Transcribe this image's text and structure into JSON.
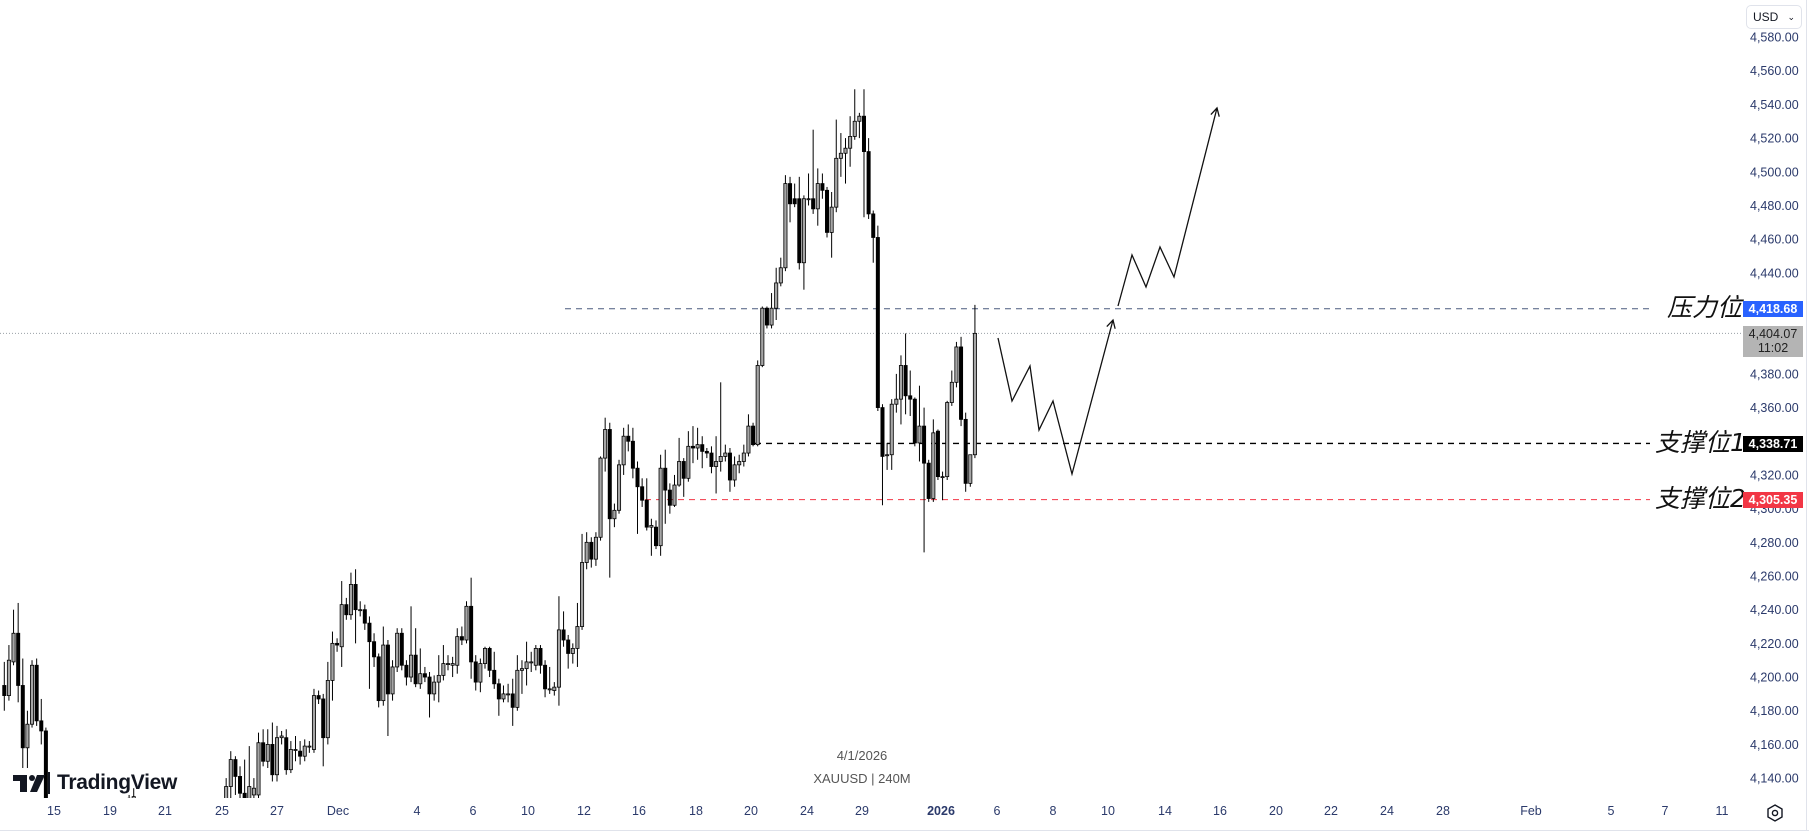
{
  "instrument": {
    "symbol_line": "XAUUSD | 240M",
    "date_line": "4/1/2026"
  },
  "brand": {
    "logo_text": "TradingView"
  },
  "currency_selector": {
    "value": "USD"
  },
  "colors": {
    "bull_body": "#a6a6a6",
    "bear_body": "#000000",
    "outline": "#000000",
    "resistance": "#2962ff",
    "support1": "#000000",
    "support2": "#f23645",
    "current": "#b4b4b4"
  },
  "levels": {
    "resistance": {
      "label": "压力位",
      "value": 4418.68,
      "price_text": "4,418.68"
    },
    "support1": {
      "label": "支撑位1",
      "value": 4338.71,
      "price_text": "4,338.71"
    },
    "support2": {
      "label": "支撑位2",
      "value": 4305.35,
      "price_text": "4,305.35"
    },
    "current": {
      "value": 4404.07,
      "price_text": "4,404.07",
      "countdown": "11:02"
    }
  },
  "chart_data": {
    "type": "candlestick",
    "title": "",
    "ylim": [
      4127,
      4602
    ],
    "grid": false,
    "y_ticks": [
      "4,580.00",
      "4,560.00",
      "4,540.00",
      "4,520.00",
      "4,500.00",
      "4,480.00",
      "4,460.00",
      "4,440.00",
      "4,420.00",
      "4,400.00",
      "4,380.00",
      "4,360.00",
      "4,340.00",
      "4,320.00",
      "4,300.00",
      "4,280.00",
      "4,260.00",
      "4,240.00",
      "4,220.00",
      "4,200.00",
      "4,180.00",
      "4,160.00",
      "4,140.00"
    ],
    "y_tick_values": [
      4580,
      4560,
      4540,
      4520,
      4500,
      4480,
      4460,
      4440,
      4420,
      4400,
      4380,
      4360,
      4340,
      4320,
      4300,
      4280,
      4260,
      4240,
      4220,
      4200,
      4180,
      4160,
      4140
    ],
    "x_ticks": [
      "15",
      "19",
      "21",
      "25",
      "27",
      "Dec",
      "4",
      "6",
      "10",
      "12",
      "16",
      "18",
      "20",
      "24",
      "29",
      "2026",
      "6",
      "8",
      "10",
      "14",
      "16",
      "20",
      "22",
      "24",
      "28",
      "Feb",
      "5",
      "7",
      "11"
    ],
    "candles_ohlc": [
      [
        4195,
        4209,
        4180,
        4189
      ],
      [
        4189,
        4219,
        4186,
        4210
      ],
      [
        4209,
        4240,
        4207,
        4226
      ],
      [
        4226,
        4244,
        4185,
        4195
      ],
      [
        4195,
        4211,
        4146,
        4158
      ],
      [
        4158,
        4180,
        4146,
        4172
      ],
      [
        4172,
        4210,
        4170,
        4207
      ],
      [
        4207,
        4211,
        4171,
        4174
      ],
      [
        4174,
        4187,
        4160,
        4168
      ],
      [
        4168,
        4170,
        4110,
        4120
      ],
      null,
      null,
      null,
      null,
      null,
      null,
      null,
      null,
      null,
      null,
      null,
      null,
      null,
      null,
      null,
      null,
      null,
      [
        4125,
        4130,
        4115,
        4128
      ],
      [
        4127,
        4134,
        4118,
        4129
      ],
      null,
      null,
      null,
      null,
      null,
      null,
      null,
      null,
      null,
      null,
      null,
      null,
      null,
      null,
      null,
      null,
      null,
      null,
      null,
      [
        4125,
        4140,
        4118,
        4135
      ],
      [
        4135,
        4156,
        4128,
        4151
      ],
      [
        4151,
        4153,
        4130,
        4141
      ],
      [
        4141,
        4147,
        4122,
        4131
      ],
      [
        4131,
        4151,
        4115,
        4125
      ],
      [
        4125,
        4159,
        4118,
        4135
      ],
      [
        4130,
        4140,
        4124,
        4134
      ],
      [
        4130,
        4167,
        4126,
        4161
      ],
      [
        4161,
        4169,
        4147,
        4150
      ],
      [
        4150,
        4169,
        4146,
        4160
      ],
      [
        4160,
        4173,
        4138,
        4142
      ],
      [
        4142,
        4171,
        4138,
        4164
      ],
      [
        4164,
        4168,
        4160,
        4165
      ],
      [
        4164,
        4169,
        4142,
        4145
      ],
      [
        4145,
        4162,
        4143,
        4157
      ],
      [
        4157,
        4165,
        4150,
        4157
      ],
      [
        4156,
        4162,
        4148,
        4153
      ],
      [
        4153,
        4163,
        4150,
        4159
      ],
      [
        4159,
        4162,
        4155,
        4159
      ],
      [
        4157,
        4193,
        4155,
        4189
      ],
      [
        4189,
        4192,
        4184,
        4187
      ],
      [
        4187,
        4190,
        4147,
        4164
      ],
      [
        4164,
        4209,
        4160,
        4198
      ],
      [
        4198,
        4227,
        4186,
        4220
      ],
      [
        4220,
        4223,
        4215,
        4219
      ],
      [
        4218,
        4257,
        4206,
        4243
      ],
      [
        4243,
        4247,
        4234,
        4237
      ],
      [
        4237,
        4262,
        4234,
        4255
      ],
      [
        4255,
        4264,
        4220,
        4240
      ],
      [
        4240,
        4245,
        4236,
        4240
      ],
      [
        4240,
        4243,
        4228,
        4232
      ],
      [
        4232,
        4236,
        4193,
        4221
      ],
      [
        4221,
        4226,
        4206,
        4212
      ],
      [
        4212,
        4214,
        4182,
        4186
      ],
      [
        4186,
        4230,
        4183,
        4219
      ],
      [
        4219,
        4222,
        4165,
        4190
      ],
      [
        4190,
        4210,
        4186,
        4206
      ],
      [
        4206,
        4229,
        4203,
        4226
      ],
      [
        4226,
        4229,
        4204,
        4207
      ],
      [
        4207,
        4210,
        4195,
        4200
      ],
      [
        4200,
        4242,
        4197,
        4213
      ],
      [
        4213,
        4229,
        4194,
        4196
      ],
      [
        4196,
        4217,
        4193,
        4202
      ],
      [
        4202,
        4206,
        4197,
        4200
      ],
      [
        4200,
        4203,
        4176,
        4190
      ],
      [
        4190,
        4201,
        4186,
        4197
      ],
      [
        4197,
        4213,
        4185,
        4201
      ],
      [
        4201,
        4219,
        4198,
        4208
      ],
      [
        4208,
        4213,
        4204,
        4208
      ],
      [
        4207,
        4212,
        4200,
        4208
      ],
      [
        4207,
        4229,
        4202,
        4224
      ],
      [
        4224,
        4230,
        4219,
        4222
      ],
      [
        4222,
        4245,
        4220,
        4242
      ],
      [
        4242,
        4259,
        4199,
        4209
      ],
      [
        4209,
        4213,
        4192,
        4197
      ],
      [
        4197,
        4211,
        4191,
        4208
      ],
      [
        4208,
        4218,
        4205,
        4217
      ],
      [
        4217,
        4218,
        4200,
        4204
      ],
      [
        4204,
        4215,
        4193,
        4196
      ],
      [
        4196,
        4199,
        4177,
        4187
      ],
      [
        4187,
        4195,
        4185,
        4190
      ],
      [
        4190,
        4196,
        4185,
        4190
      ],
      [
        4190,
        4199,
        4171,
        4182
      ],
      [
        4182,
        4213,
        4180,
        4204
      ],
      [
        4204,
        4210,
        4190,
        4205
      ],
      [
        4205,
        4221,
        4195,
        4209
      ],
      [
        4209,
        4215,
        4203,
        4209
      ],
      [
        4207,
        4219,
        4204,
        4217
      ],
      [
        4217,
        4219,
        4202,
        4207
      ],
      [
        4207,
        4210,
        4188,
        4193
      ],
      [
        4193,
        4206,
        4190,
        4193
      ],
      [
        4192,
        4197,
        4189,
        4194
      ],
      [
        4194,
        4248,
        4183,
        4228
      ],
      [
        4228,
        4239,
        4218,
        4222
      ],
      [
        4222,
        4225,
        4205,
        4214
      ],
      [
        4214,
        4220,
        4208,
        4217
      ],
      [
        4217,
        4244,
        4206,
        4230
      ],
      [
        4230,
        4285,
        4228,
        4268
      ],
      [
        4268,
        4286,
        4264,
        4280
      ],
      [
        4280,
        4283,
        4265,
        4270
      ],
      [
        4270,
        4286,
        4266,
        4283
      ],
      [
        4283,
        4331,
        4281,
        4330
      ],
      [
        4330,
        4354,
        4322,
        4347
      ],
      [
        4347,
        4351,
        4259,
        4294
      ],
      [
        4294,
        4303,
        4289,
        4299
      ],
      [
        4299,
        4329,
        4297,
        4326
      ],
      [
        4326,
        4348,
        4320,
        4343
      ],
      [
        4343,
        4350,
        4334,
        4340
      ],
      [
        4340,
        4348,
        4318,
        4324
      ],
      [
        4324,
        4328,
        4285,
        4313
      ],
      [
        4313,
        4318,
        4301,
        4305
      ],
      [
        4305,
        4318,
        4287,
        4289
      ],
      [
        4289,
        4294,
        4272,
        4290
      ],
      [
        4289,
        4293,
        4276,
        4278
      ],
      [
        4278,
        4332,
        4272,
        4324
      ],
      [
        4324,
        4335,
        4291,
        4311
      ],
      [
        4311,
        4315,
        4297,
        4302
      ],
      [
        4302,
        4320,
        4301,
        4314
      ],
      [
        4314,
        4342,
        4313,
        4328
      ],
      [
        4328,
        4330,
        4307,
        4318
      ],
      [
        4318,
        4346,
        4316,
        4337
      ],
      [
        4337,
        4349,
        4327,
        4336
      ],
      [
        4336,
        4348,
        4329,
        4338
      ],
      [
        4338,
        4343,
        4324,
        4334
      ],
      [
        4334,
        4336,
        4330,
        4333
      ],
      [
        4333,
        4337,
        4321,
        4325
      ],
      [
        4325,
        4343,
        4309,
        4328
      ],
      [
        4328,
        4375,
        4322,
        4331
      ],
      [
        4331,
        4338,
        4328,
        4333
      ],
      [
        4333,
        4336,
        4310,
        4317
      ],
      [
        4317,
        4331,
        4313,
        4326
      ],
      [
        4326,
        4332,
        4321,
        4328
      ],
      [
        4328,
        4338,
        4325,
        4333
      ],
      [
        4333,
        4356,
        4331,
        4349
      ],
      [
        4349,
        4351,
        4337,
        4338
      ],
      [
        4338,
        4388,
        4337,
        4385
      ],
      [
        4385,
        4420,
        4384,
        4419
      ],
      [
        4419,
        4420,
        4407,
        4409
      ],
      [
        4409,
        4428,
        4407,
        4419
      ],
      [
        4419,
        4443,
        4412,
        4434
      ],
      [
        4434,
        4449,
        4432,
        4443
      ],
      [
        4443,
        4498,
        4441,
        4493
      ],
      [
        4493,
        4497,
        4470,
        4481
      ],
      [
        4484,
        4493,
        4479,
        4481
      ],
      [
        4484,
        4497,
        4442,
        4446
      ],
      [
        4446,
        4486,
        4430,
        4484
      ],
      [
        4484,
        4499,
        4480,
        4484
      ],
      [
        4484,
        4525,
        4475,
        4478
      ],
      [
        4478,
        4502,
        4468,
        4493
      ],
      [
        4493,
        4499,
        4484,
        4489
      ],
      [
        4489,
        4491,
        4461,
        4464
      ],
      [
        4464,
        4488,
        4449,
        4479
      ],
      [
        4479,
        4531,
        4476,
        4508
      ],
      [
        4508,
        4523,
        4497,
        4511
      ],
      [
        4511,
        4520,
        4493,
        4514
      ],
      [
        4514,
        4533,
        4503,
        4521
      ],
      [
        4521,
        4549,
        4519,
        4530
      ],
      [
        4530,
        4535,
        4520,
        4533
      ],
      [
        4533,
        4549,
        4473,
        4512
      ],
      [
        4512,
        4520,
        4472,
        4475
      ],
      [
        4475,
        4477,
        4446,
        4461
      ],
      [
        4461,
        4468,
        4358,
        4360
      ],
      [
        4360,
        4362,
        4302,
        4331
      ],
      [
        4332,
        4339,
        4323,
        4332
      ],
      [
        4332,
        4365,
        4323,
        4362
      ],
      [
        4362,
        4380,
        4357,
        4365
      ],
      [
        4365,
        4391,
        4350,
        4385
      ],
      [
        4385,
        4404,
        4356,
        4367
      ],
      [
        4367,
        4382,
        4355,
        4365
      ],
      [
        4365,
        4366,
        4337,
        4339
      ],
      [
        4339,
        4373,
        4328,
        4349
      ],
      [
        4349,
        4360,
        4274,
        4327
      ],
      [
        4327,
        4329,
        4304,
        4306
      ],
      [
        4306,
        4353,
        4304,
        4345
      ],
      [
        4346,
        4347,
        4317,
        4319
      ],
      [
        4319,
        4322,
        4305,
        4319
      ],
      [
        4319,
        4364,
        4317,
        4363
      ],
      [
        4363,
        4382,
        4361,
        4375
      ],
      [
        4375,
        4399,
        4372,
        4396
      ],
      [
        4396,
        4402,
        4349,
        4353
      ],
      [
        4353,
        4357,
        4310,
        4315
      ],
      [
        4315,
        4332,
        4313,
        4332
      ],
      [
        4332,
        4421,
        4330,
        4404.07
      ]
    ]
  }
}
